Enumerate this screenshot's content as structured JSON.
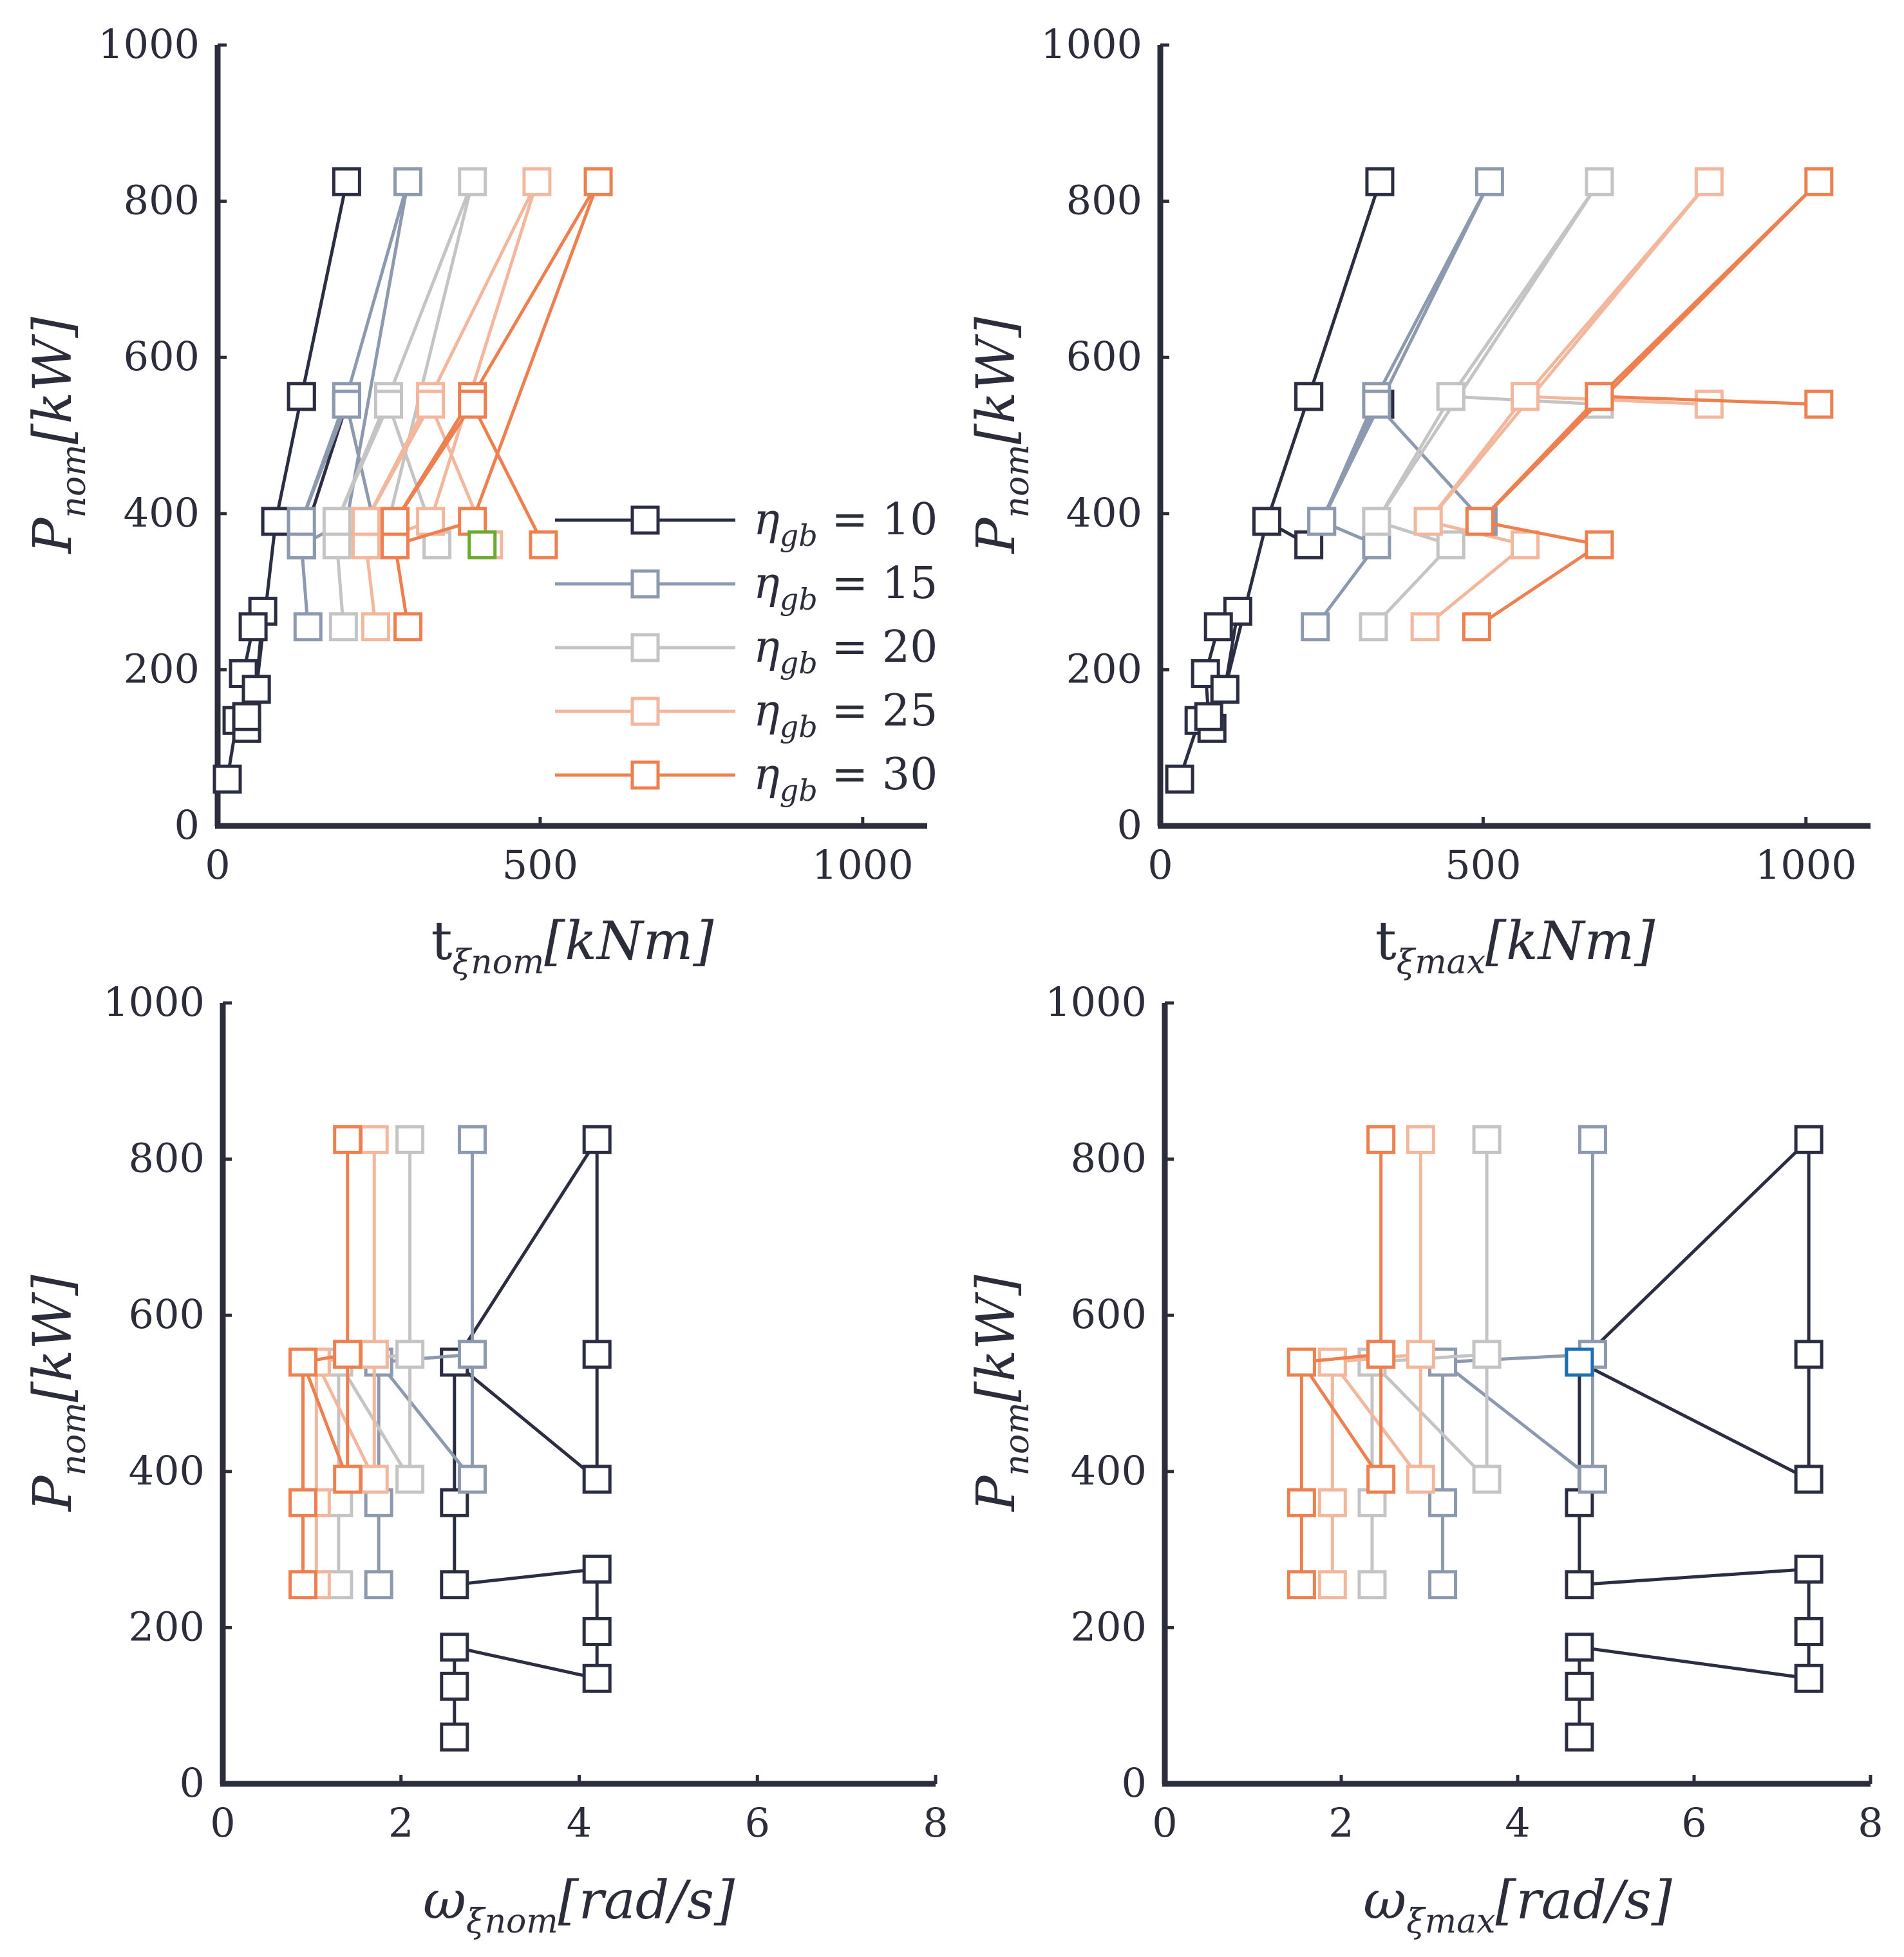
{
  "chart_data": [
    {
      "type": "line",
      "panel": "top-left",
      "xlabel": "t_{ξ_nom}[kNm]",
      "xlabel_main": "t",
      "xlabel_sub": "ξnom",
      "xlabel_unit": "[kNm]",
      "ylabel": "P_nom[kW]",
      "ylabel_main": "P",
      "ylabel_sub": "nom",
      "ylabel_unit": "[kW]",
      "xlim": [
        0,
        1100
      ],
      "ylim": [
        0,
        1000
      ],
      "xticks": [
        0,
        500,
        1000
      ],
      "xtick_labels": [
        "0",
        "500",
        "1000"
      ],
      "yticks": [
        0,
        200,
        400,
        600,
        800,
        1000
      ],
      "ytick_labels": [
        "0",
        "200",
        "400",
        "600",
        "800",
        "1000"
      ],
      "grid": false,
      "legend": "right-center",
      "series": [
        {
          "name": "η_gb = 10",
          "x": [
            15,
            30,
            45,
            60,
            70,
            55,
            40,
            45,
            60,
            90,
            130,
            200,
            130,
            90,
            130,
            200
          ],
          "y": [
            60,
            135,
            125,
            175,
            275,
            255,
            195,
            140,
            175,
            390,
            550,
            825,
            550,
            390,
            360,
            540
          ]
        },
        {
          "name": "η_gb = 15",
          "x": [
            140,
            130,
            200,
            295,
            200,
            130,
            200,
            250
          ],
          "y": [
            255,
            360,
            390,
            825,
            550,
            390,
            540,
            360
          ]
        },
        {
          "name": "η_gb = 20",
          "x": [
            195,
            185,
            265,
            395,
            265,
            185,
            265,
            340
          ],
          "y": [
            255,
            360,
            390,
            825,
            550,
            390,
            540,
            360
          ]
        },
        {
          "name": "η_gb = 25",
          "x": [
            245,
            230,
            330,
            495,
            330,
            230,
            330,
            420
          ],
          "y": [
            255,
            360,
            390,
            825,
            550,
            390,
            540,
            360
          ]
        },
        {
          "name": "η_gb = 30",
          "x": [
            295,
            275,
            395,
            590,
            395,
            275,
            395,
            505
          ],
          "y": [
            255,
            360,
            390,
            825,
            550,
            390,
            540,
            360
          ]
        }
      ],
      "highlight": {
        "x": 410,
        "y": 360,
        "color": "#6aaa2e"
      }
    },
    {
      "type": "line",
      "panel": "top-right",
      "xlabel": "t_{ξ_max}[kNm]",
      "xlabel_main": "t",
      "xlabel_sub": "ξmax",
      "xlabel_unit": "[kNm]",
      "ylabel": "P_nom[kW]",
      "ylabel_main": "P",
      "ylabel_sub": "nom",
      "ylabel_unit": "[kW]",
      "xlim": [
        0,
        1100
      ],
      "ylim": [
        0,
        1000
      ],
      "xticks": [
        0,
        500,
        1000
      ],
      "xtick_labels": [
        "0",
        "500",
        "1000"
      ],
      "yticks": [
        0,
        200,
        400,
        600,
        800,
        1000
      ],
      "ytick_labels": [
        "0",
        "200",
        "400",
        "600",
        "800",
        "1000"
      ],
      "grid": false,
      "series": [
        {
          "name": "η_gb = 10",
          "x": [
            30,
            60,
            80,
            100,
            120,
            90,
            70,
            75,
            100,
            165,
            230,
            340,
            230,
            165,
            230,
            340
          ],
          "y": [
            60,
            135,
            125,
            175,
            275,
            255,
            195,
            140,
            175,
            390,
            550,
            825,
            550,
            390,
            360,
            540
          ]
        },
        {
          "name": "η_gb = 15",
          "x": [
            240,
            335,
            250,
            510,
            335,
            250,
            335,
            500
          ],
          "y": [
            255,
            360,
            390,
            825,
            550,
            390,
            540,
            390
          ]
        },
        {
          "name": "η_gb = 20",
          "x": [
            330,
            450,
            335,
            680,
            450,
            335,
            450,
            680
          ],
          "y": [
            255,
            360,
            390,
            825,
            550,
            390,
            550,
            540
          ]
        },
        {
          "name": "η_gb = 25",
          "x": [
            410,
            565,
            415,
            850,
            565,
            415,
            565,
            850
          ],
          "y": [
            255,
            360,
            390,
            825,
            550,
            390,
            550,
            540
          ]
        },
        {
          "name": "η_gb = 30",
          "x": [
            490,
            680,
            495,
            1020,
            680,
            495,
            680,
            1020
          ],
          "y": [
            255,
            360,
            390,
            825,
            550,
            390,
            550,
            540
          ]
        }
      ]
    },
    {
      "type": "line",
      "panel": "bottom-left",
      "xlabel": "ω_{ξ_nom}[rad/s]",
      "xlabel_main": "ω",
      "xlabel_sub": "ξnom",
      "xlabel_unit": "[rad/s]",
      "ylabel": "P_nom[kW]",
      "ylabel_main": "P",
      "ylabel_sub": "nom",
      "ylabel_unit": "[kW]",
      "xlim": [
        0,
        8
      ],
      "ylim": [
        0,
        1000
      ],
      "xticks": [
        0,
        2,
        4,
        6,
        8
      ],
      "xtick_labels": [
        "0",
        "2",
        "4",
        "6",
        "8"
      ],
      "yticks": [
        0,
        200,
        400,
        600,
        800,
        1000
      ],
      "ytick_labels": [
        "0",
        "200",
        "400",
        "600",
        "800",
        "1000"
      ],
      "grid": false,
      "series": [
        {
          "name": "η_gb = 10",
          "x": [
            2.6,
            2.6,
            2.6,
            4.2,
            4.2,
            4.2,
            2.6,
            2.6,
            2.6,
            4.2,
            4.2,
            4.2,
            2.6,
            2.6
          ],
          "y": [
            60,
            125,
            175,
            135,
            195,
            275,
            255,
            360,
            540,
            390,
            550,
            825,
            540,
            540
          ]
        },
        {
          "name": "η_gb = 15",
          "x": [
            1.75,
            1.75,
            1.75,
            2.8,
            2.8,
            2.8,
            2.8,
            1.75
          ],
          "y": [
            255,
            360,
            540,
            390,
            550,
            825,
            550,
            540
          ]
        },
        {
          "name": "η_gb = 20",
          "x": [
            1.3,
            1.3,
            1.3,
            2.1,
            2.1,
            2.1,
            2.1,
            1.3
          ],
          "y": [
            255,
            360,
            540,
            390,
            550,
            825,
            550,
            540
          ]
        },
        {
          "name": "η_gb = 25",
          "x": [
            1.05,
            1.05,
            1.05,
            1.7,
            1.7,
            1.7,
            1.7,
            1.05
          ],
          "y": [
            255,
            360,
            540,
            390,
            550,
            825,
            550,
            540
          ]
        },
        {
          "name": "η_gb = 30",
          "x": [
            0.9,
            0.9,
            0.9,
            1.4,
            1.4,
            1.4,
            1.4,
            0.9
          ],
          "y": [
            255,
            360,
            540,
            390,
            550,
            825,
            550,
            540
          ]
        }
      ]
    },
    {
      "type": "line",
      "panel": "bottom-right",
      "xlabel": "ω_{ξ_max}[rad/s]",
      "xlabel_main": "ω",
      "xlabel_sub": "ξmax",
      "xlabel_unit": "[rad/s]",
      "ylabel": "P_nom[kW]",
      "ylabel_main": "P",
      "ylabel_sub": "nom",
      "ylabel_unit": "[kW]",
      "xlim": [
        0,
        8
      ],
      "ylim": [
        0,
        1000
      ],
      "xticks": [
        0,
        2,
        4,
        6,
        8
      ],
      "xtick_labels": [
        "0",
        "2",
        "4",
        "6",
        "8"
      ],
      "yticks": [
        0,
        200,
        400,
        600,
        800,
        1000
      ],
      "ytick_labels": [
        "0",
        "200",
        "400",
        "600",
        "800",
        "1000"
      ],
      "grid": false,
      "series": [
        {
          "name": "η_gb = 10",
          "x": [
            4.7,
            4.7,
            4.7,
            7.3,
            7.3,
            7.3,
            4.7,
            4.7,
            4.7,
            7.3,
            7.3,
            7.3,
            4.7,
            4.7
          ],
          "y": [
            60,
            125,
            175,
            135,
            195,
            275,
            255,
            360,
            540,
            390,
            550,
            825,
            540,
            540
          ]
        },
        {
          "name": "η_gb = 15",
          "x": [
            3.15,
            3.15,
            3.15,
            4.85,
            4.85,
            4.85,
            4.85,
            3.15
          ],
          "y": [
            255,
            360,
            540,
            390,
            550,
            825,
            550,
            540
          ]
        },
        {
          "name": "η_gb = 20",
          "x": [
            2.35,
            2.35,
            2.35,
            3.65,
            3.65,
            3.65,
            3.65,
            2.35
          ],
          "y": [
            255,
            360,
            540,
            390,
            550,
            825,
            550,
            540
          ]
        },
        {
          "name": "η_gb = 25",
          "x": [
            1.9,
            1.9,
            1.9,
            2.9,
            2.9,
            2.9,
            2.9,
            1.9
          ],
          "y": [
            255,
            360,
            540,
            390,
            550,
            825,
            550,
            540
          ]
        },
        {
          "name": "η_gb = 30",
          "x": [
            1.55,
            1.55,
            1.55,
            2.45,
            2.45,
            2.45,
            2.45,
            1.55
          ],
          "y": [
            255,
            360,
            540,
            390,
            550,
            825,
            550,
            540
          ]
        }
      ],
      "highlight": {
        "x": 4.7,
        "y": 540,
        "color": "#1f6fb5"
      }
    }
  ],
  "legend": {
    "entries": [
      {
        "symbol": "η",
        "sub": "gb",
        "eq": " = 10",
        "color": "#2b2d42"
      },
      {
        "symbol": "η",
        "sub": "gb",
        "eq": " = 15",
        "color": "#8d99ae"
      },
      {
        "symbol": "η",
        "sub": "gb",
        "eq": " = 20",
        "color": "#c4c4c4"
      },
      {
        "symbol": "η",
        "sub": "gb",
        "eq": " = 25",
        "color": "#f2b79c"
      },
      {
        "symbol": "η",
        "sub": "gb",
        "eq": " = 30",
        "color": "#ee7f4e"
      }
    ]
  },
  "colors": {
    "axis": "#2b2d3b",
    "series": [
      "#2b2d42",
      "#8d99ae",
      "#c4c4c4",
      "#f2b79c",
      "#ee7f4e"
    ],
    "highlight_green": "#6aaa2e",
    "highlight_blue": "#1f6fb5"
  }
}
